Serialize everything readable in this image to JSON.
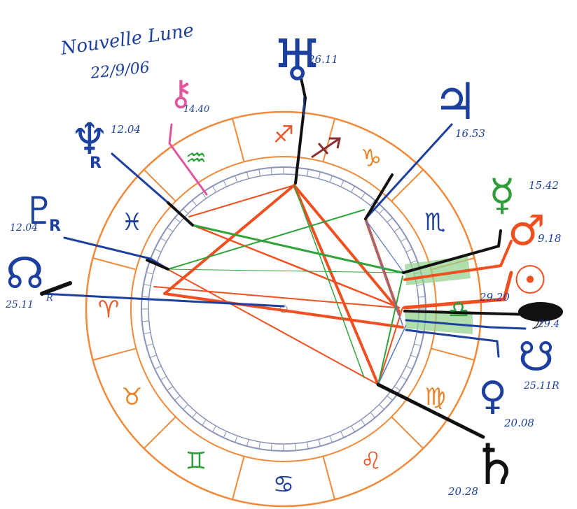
{
  "title": {
    "line1": "Nouvelle Lune",
    "line2": "22/9/06"
  },
  "colors": {
    "ring": "#f08a3a",
    "inner_ring": "#8a92b8",
    "fire": "#e85a2a",
    "earth": "#e8842a",
    "air": "#2f9e3a",
    "water": "#1d3f9e",
    "aspect_red": "#f05020",
    "aspect_green": "#2fa33a",
    "aspect_blue": "#5a78c8",
    "chiron": "#e0559e",
    "sun_moon": "#111111"
  },
  "signs": [
    {
      "name": "capricorn",
      "glyph": "♑",
      "color": "earth"
    },
    {
      "name": "scorpio",
      "glyph": "♏",
      "color": "water"
    },
    {
      "name": "libra",
      "glyph": "♎",
      "color": "air"
    },
    {
      "name": "virgo",
      "glyph": "♍",
      "color": "earth"
    },
    {
      "name": "leo",
      "glyph": "♌",
      "color": "fire"
    },
    {
      "name": "cancer",
      "glyph": "♋",
      "color": "water"
    },
    {
      "name": "gemini",
      "glyph": "♊",
      "color": "air"
    },
    {
      "name": "taurus",
      "glyph": "♉",
      "color": "earth"
    },
    {
      "name": "aries",
      "glyph": "♈",
      "color": "fire"
    },
    {
      "name": "pisces",
      "glyph": "♓",
      "color": "water"
    },
    {
      "name": "aquarius",
      "glyph": "♒",
      "color": "air"
    },
    {
      "name": "sagittarius",
      "glyph": "♐",
      "color": "fire"
    }
  ],
  "planets": {
    "uranus": {
      "glyph": "♅",
      "degree": "26.11"
    },
    "jupiter": {
      "glyph": "♃",
      "degree": "16.53"
    },
    "mercury": {
      "glyph": "☿",
      "degree": "15.42"
    },
    "mars": {
      "glyph": "♂",
      "degree": "9.18"
    },
    "sun": {
      "glyph": "☉",
      "degree": "29.20"
    },
    "moon": {
      "glyph": "☽",
      "degree": "29.4"
    },
    "south_node": {
      "glyph": "☋",
      "degree": "25.11R"
    },
    "venus": {
      "glyph": "♀",
      "degree": "20.08"
    },
    "saturn": {
      "glyph": "♄",
      "degree": "20.28"
    },
    "north_node": {
      "glyph": "☊",
      "degree": "25.11",
      "retro": "R"
    },
    "pluto": {
      "glyph": "♇",
      "degree": "12.04",
      "retro": "R"
    },
    "neptune": {
      "glyph": "♆",
      "degree": "12.04",
      "retro": "R"
    },
    "chiron": {
      "glyph": "⚷",
      "degree": "14.40"
    }
  }
}
